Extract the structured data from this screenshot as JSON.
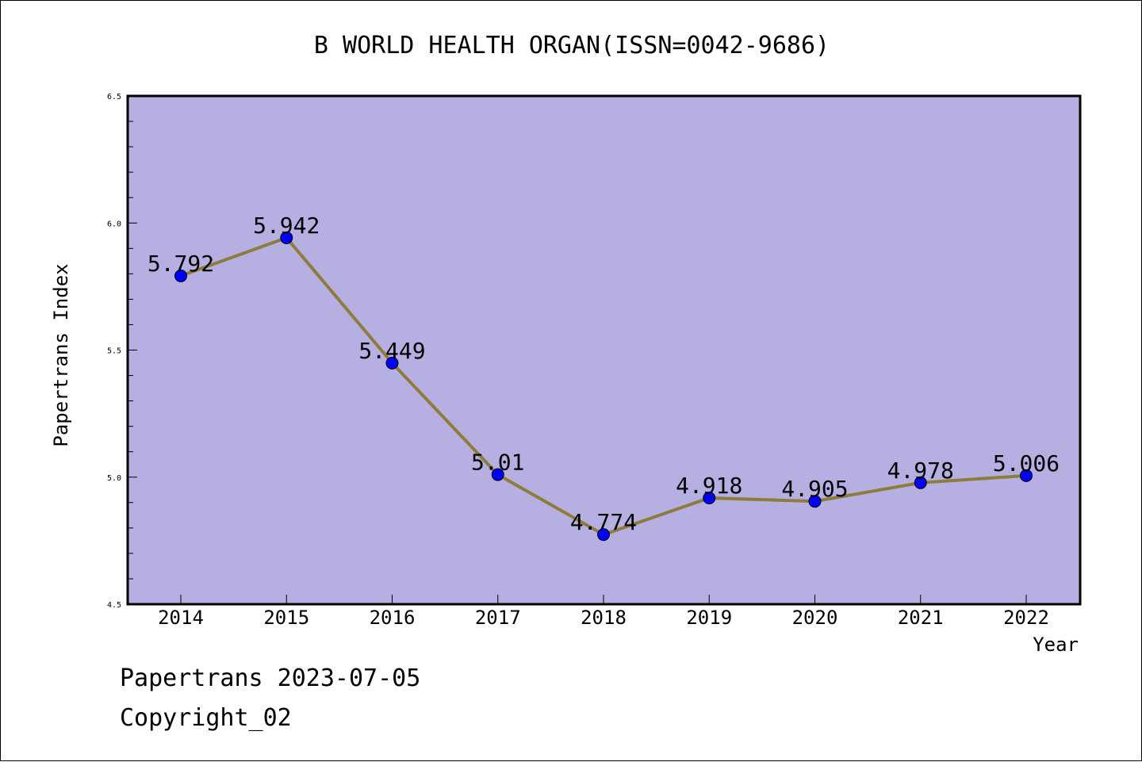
{
  "chart_data": {
    "type": "line",
    "title": "B WORLD HEALTH ORGAN(ISSN=0042-9686)",
    "xlabel": "Year",
    "ylabel": "Papertrans Index",
    "categories": [
      "2014",
      "2015",
      "2016",
      "2017",
      "2018",
      "2019",
      "2020",
      "2021",
      "2022"
    ],
    "series": [
      {
        "values": [
          5.792,
          5.942,
          5.449,
          5.01,
          4.774,
          4.918,
          4.905,
          4.978,
          5.006
        ],
        "labels": [
          "5.792",
          "5.942",
          "5.449",
          "5.01",
          "4.774",
          "4.918",
          "4.905",
          "4.978",
          "5.006"
        ]
      }
    ],
    "ylim": [
      4.5,
      6.5
    ],
    "yticks": [
      "4.5",
      "5.0",
      "5.5",
      "6.0",
      "6.5"
    ],
    "grid": false,
    "colors": {
      "plot_background": "#b5afe2",
      "line": "#8f7c3c",
      "marker": "#0000ff"
    }
  },
  "footer": {
    "line1": "Papertrans 2023-07-05",
    "line2": "Copyright_02"
  }
}
